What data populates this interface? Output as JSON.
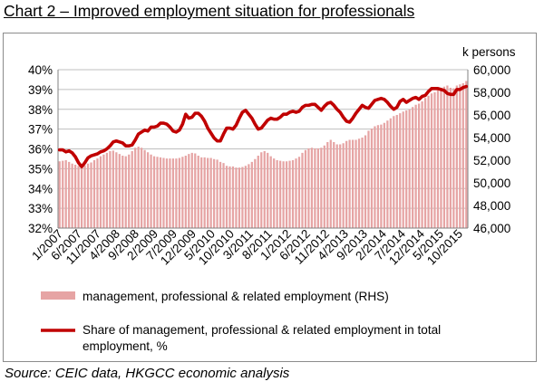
{
  "title": "Chart 2 – Improved employment situation for professionals",
  "source": "Source: CEIC data, HKGCC economic analysis",
  "colors": {
    "line": "#c00000",
    "bar": "#e6a4a4",
    "grid": "#bfbfbf",
    "axis": "#808080"
  },
  "chart_data": {
    "type": "bar",
    "x_tick_labels": [
      "1/2007",
      "6/2007",
      "11/2007",
      "4/2008",
      "9/2008",
      "2/2009",
      "7/2009",
      "12/2009",
      "5/2010",
      "10/2010",
      "3/2011",
      "8/2011",
      "1/2012",
      "6/2012",
      "11/2012",
      "4/2013",
      "9/2013",
      "2/2014",
      "7/2014",
      "12/2014",
      "5/2015",
      "10/2015"
    ],
    "y_left": {
      "ticks": [
        "32%",
        "33%",
        "34%",
        "35%",
        "36%",
        "37%",
        "38%",
        "39%",
        "40%"
      ],
      "ylim": [
        32,
        40
      ]
    },
    "y_right": {
      "label": "k persons",
      "ticks": [
        "46,000",
        "48,000",
        "50,000",
        "52,000",
        "54,000",
        "56,000",
        "58,000",
        "60,000"
      ],
      "ylim": [
        46000,
        60000
      ]
    },
    "legend": [
      {
        "name": "management, professional & related employment (RHS)",
        "type": "bar"
      },
      {
        "name": "Share of management, professional & related employment in total employment, %",
        "type": "line"
      }
    ],
    "series": [
      {
        "name": "management, professional & related employment (RHS)",
        "axis": "right",
        "values": [
          51900,
          51950,
          52000,
          51850,
          51700,
          51600,
          51500,
          51600,
          51550,
          51700,
          51800,
          52000,
          52150,
          52350,
          52500,
          52650,
          52800,
          52850,
          52700,
          52550,
          52400,
          52350,
          52500,
          52800,
          53100,
          53200,
          53100,
          52900,
          52700,
          52500,
          52350,
          52300,
          52250,
          52200,
          52150,
          52150,
          52150,
          52150,
          52200,
          52300,
          52400,
          52550,
          52650,
          52600,
          52400,
          52250,
          52250,
          52200,
          52200,
          52100,
          52050,
          51850,
          51750,
          51500,
          51450,
          51450,
          51350,
          51350,
          51400,
          51500,
          51650,
          51850,
          52100,
          52400,
          52700,
          52800,
          52650,
          52350,
          52150,
          52000,
          51950,
          51900,
          51900,
          51950,
          52000,
          52150,
          52300,
          52650,
          52900,
          53050,
          53100,
          53050,
          53050,
          53100,
          53300,
          53600,
          53800,
          53600,
          53400,
          53400,
          53500,
          53700,
          53800,
          53800,
          53800,
          53900,
          54000,
          54200,
          54600,
          54800,
          55000,
          55100,
          55150,
          55300,
          55500,
          55700,
          55900,
          56000,
          56150,
          56300,
          56400,
          56500,
          56700,
          56900,
          57000,
          57200,
          57500,
          57700,
          57900,
          58000,
          58200,
          58400,
          58500,
          58600,
          58400,
          58350,
          58600,
          58700,
          58800,
          59000
        ]
      },
      {
        "name": "Share of management, professional & related employment in total employment, %",
        "axis": "left",
        "values": [
          35.95,
          35.95,
          35.85,
          35.9,
          35.8,
          35.6,
          35.3,
          35.1,
          35.3,
          35.55,
          35.65,
          35.7,
          35.75,
          35.85,
          35.9,
          36.0,
          36.15,
          36.35,
          36.4,
          36.35,
          36.3,
          36.15,
          36.15,
          36.2,
          36.45,
          36.75,
          36.85,
          36.95,
          36.9,
          37.1,
          37.1,
          37.15,
          37.3,
          37.3,
          37.25,
          37.1,
          36.9,
          36.85,
          36.95,
          37.25,
          37.75,
          37.55,
          37.6,
          37.8,
          37.8,
          37.65,
          37.4,
          37.05,
          36.8,
          36.55,
          36.4,
          36.4,
          36.75,
          37.05,
          37.05,
          37.0,
          37.2,
          37.55,
          37.85,
          37.95,
          37.75,
          37.55,
          37.25,
          37.0,
          37.05,
          37.25,
          37.45,
          37.55,
          37.5,
          37.5,
          37.6,
          37.75,
          37.75,
          37.85,
          37.9,
          37.85,
          37.9,
          38.1,
          38.2,
          38.2,
          38.25,
          38.25,
          38.1,
          37.95,
          38.15,
          38.3,
          38.35,
          38.2,
          38.0,
          37.85,
          37.6,
          37.4,
          37.35,
          37.55,
          37.8,
          38.0,
          38.2,
          38.1,
          38.05,
          38.25,
          38.45,
          38.5,
          38.55,
          38.5,
          38.35,
          38.15,
          38.0,
          38.1,
          38.4,
          38.5,
          38.35,
          38.45,
          38.55,
          38.6,
          38.5,
          38.65,
          38.7,
          38.9,
          39.05,
          39.05,
          39.05,
          39.0,
          38.95,
          38.8,
          38.75,
          38.75,
          39.0,
          39.0,
          39.1,
          39.15
        ]
      }
    ],
    "grid": true,
    "legend_position": "bottom"
  }
}
